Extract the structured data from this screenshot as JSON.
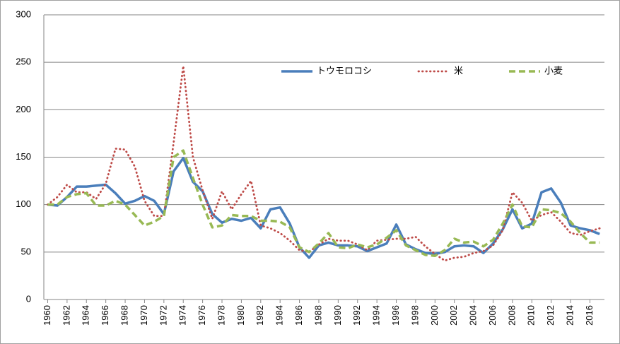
{
  "chart_data": {
    "type": "line",
    "x": [
      1960,
      1961,
      1962,
      1963,
      1964,
      1965,
      1966,
      1967,
      1968,
      1969,
      1970,
      1971,
      1972,
      1973,
      1974,
      1975,
      1976,
      1977,
      1978,
      1979,
      1980,
      1981,
      1982,
      1983,
      1984,
      1985,
      1986,
      1987,
      1988,
      1989,
      1990,
      1991,
      1992,
      1993,
      1994,
      1995,
      1996,
      1997,
      1998,
      1999,
      2000,
      2001,
      2002,
      2003,
      2004,
      2005,
      2006,
      2007,
      2008,
      2009,
      2010,
      2011,
      2012,
      2013,
      2014,
      2015,
      2016,
      2017
    ],
    "series": [
      {
        "name": "トウモロコシ",
        "color": "#4a7ebb",
        "style": "solid",
        "values": [
          100,
          99,
          108,
          119,
          119,
          120,
          121,
          112,
          101,
          104,
          109,
          104,
          90,
          135,
          149,
          124,
          114,
          90,
          81,
          85,
          83,
          86,
          75,
          95,
          97,
          80,
          55,
          44,
          57,
          60,
          57,
          57,
          56,
          51,
          55,
          59,
          79,
          58,
          53,
          49,
          48,
          50,
          56,
          57,
          56,
          49,
          59,
          74,
          95,
          75,
          80,
          113,
          117,
          102,
          78,
          75,
          73,
          69
        ]
      },
      {
        "name": "米",
        "color": "#be4b48",
        "style": "dotted",
        "values": [
          100,
          108,
          121,
          113,
          113,
          106,
          122,
          159,
          158,
          140,
          104,
          88,
          88,
          165,
          246,
          150,
          115,
          85,
          114,
          95,
          111,
          125,
          78,
          75,
          70,
          62,
          52,
          50,
          58,
          64,
          62,
          62,
          58,
          52,
          62,
          63,
          64,
          64,
          66,
          56,
          48,
          41,
          44,
          45,
          49,
          51,
          57,
          73,
          113,
          102,
          83,
          89,
          92,
          82,
          70,
          68,
          72,
          75
        ]
      },
      {
        "name": "小麦",
        "color": "#98b954",
        "style": "dashed",
        "values": [
          100,
          100,
          108,
          111,
          112,
          99,
          99,
          104,
          100,
          89,
          78,
          82,
          88,
          150,
          157,
          128,
          100,
          76,
          78,
          89,
          88,
          88,
          83,
          83,
          82,
          76,
          55,
          50,
          59,
          70,
          55,
          54,
          58,
          55,
          58,
          65,
          73,
          57,
          52,
          47,
          46,
          52,
          64,
          60,
          61,
          56,
          63,
          80,
          100,
          77,
          76,
          95,
          94,
          91,
          82,
          70,
          60,
          60
        ]
      }
    ],
    "xlim": [
      1959.6,
      2017.5
    ],
    "xticks": [
      1960,
      1962,
      1964,
      1966,
      1968,
      1970,
      1972,
      1974,
      1976,
      1978,
      1980,
      1982,
      1984,
      1986,
      1988,
      1990,
      1992,
      1994,
      1996,
      1998,
      2000,
      2002,
      2004,
      2006,
      2008,
      2010,
      2012,
      2014,
      2016
    ],
    "ylim": [
      0,
      300
    ],
    "yticks": [
      0,
      50,
      100,
      150,
      200,
      250,
      300
    ],
    "grid": true,
    "legend": "top"
  }
}
